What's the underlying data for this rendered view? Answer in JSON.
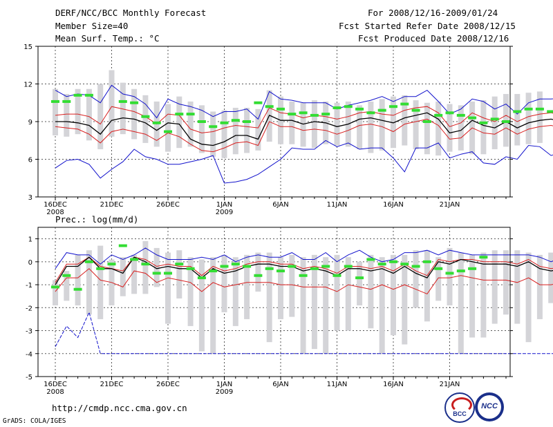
{
  "header": {
    "title": "DERF/NCC/BCC Monthly Forecast",
    "member_size": "Member Size=40",
    "variable_temp": "Mean Surf. Temp.: °C",
    "for_range": "For 2008/12/16-2009/01/24",
    "fcst_started": "Fcst Started Refer Date 2008/12/15",
    "fcst_produced": "Fcst Produced Date 2008/12/16"
  },
  "footer": {
    "url": "http://cmdp.ncc.cma.gov.cn",
    "credit": "GrADS: COLA/IGES",
    "logo_left_text": "BCC",
    "logo_right_text": "NCC"
  },
  "colors": {
    "box": "#d4d4d8",
    "observed": "#33dd33",
    "mean": "#000000",
    "inner": "#d81e1e",
    "outer": "#1111cc",
    "grid": "#555555"
  },
  "chart_data": [
    {
      "type": "line",
      "title": "Mean Surf. Temp.: °C",
      "ylim": [
        3,
        15
      ],
      "yticks": [
        3,
        6,
        9,
        12,
        15
      ],
      "x_start_day": 1,
      "x_tick_days": [
        1,
        6,
        11,
        16,
        21,
        26,
        31,
        36
      ],
      "x_tick_labels": [
        "16DEC",
        "21DEC",
        "26DEC",
        "1JAN",
        "6JAN",
        "11JAN",
        "16JAN",
        "21JAN"
      ],
      "x_year_labels": [
        "2008",
        "",
        "",
        "2009",
        "",
        "",
        "",
        ""
      ],
      "series": [
        {
          "name": "box_high",
          "values": [
            11.6,
            11.2,
            11.6,
            11.6,
            12.0,
            13.1,
            12.1,
            11.6,
            11.1,
            10.6,
            10.4,
            11.0,
            10.6,
            10.3,
            9.8,
            9.9,
            10.1,
            10.1,
            10.0,
            11.5,
            11.0,
            10.6,
            10.5,
            10.7,
            10.6,
            10.5,
            10.6,
            10.3,
            10.6,
            10.8,
            11.0,
            11.1,
            10.7,
            10.5,
            10.6,
            10.4,
            10.3,
            10.6,
            10.7,
            11.0,
            11.2,
            11.2,
            11.3,
            11.4
          ]
        },
        {
          "name": "box_low",
          "values": [
            7.9,
            7.8,
            8.0,
            7.5,
            6.8,
            7.8,
            8.0,
            7.6,
            7.3,
            7.0,
            6.6,
            6.9,
            7.0,
            6.5,
            6.2,
            6.1,
            6.4,
            6.5,
            6.7,
            7.4,
            7.2,
            7.2,
            7.0,
            6.9,
            7.2,
            7.1,
            7.0,
            6.8,
            6.5,
            6.7,
            6.9,
            7.1,
            6.8,
            6.4,
            6.3,
            6.6,
            6.7,
            6.4,
            6.4,
            6.8,
            7.0,
            7.1,
            7.2,
            7.3
          ]
        },
        {
          "name": "outer_high",
          "values": [
            11.5,
            11.0,
            11.2,
            11.1,
            10.5,
            11.9,
            11.2,
            11.0,
            10.4,
            9.3,
            10.8,
            10.4,
            10.2,
            9.9,
            9.4,
            9.8,
            9.8,
            10.0,
            9.2,
            11.4,
            10.8,
            10.7,
            10.5,
            10.5,
            10.5,
            10.0,
            10.3,
            10.5,
            10.7,
            11.0,
            10.6,
            11.0,
            11.0,
            11.5,
            10.6,
            9.6,
            10.0,
            10.8,
            10.6,
            10.0,
            10.4,
            9.6,
            10.5,
            10.8,
            10.8,
            10.9,
            11.0
          ]
        },
        {
          "name": "inner_high",
          "values": [
            9.5,
            9.6,
            9.6,
            9.4,
            8.8,
            10.2,
            10.0,
            9.8,
            9.4,
            8.8,
            9.6,
            9.5,
            8.4,
            8.1,
            8.2,
            8.5,
            8.7,
            8.6,
            8.5,
            10.1,
            9.7,
            9.6,
            9.3,
            9.5,
            9.4,
            9.2,
            9.4,
            9.7,
            9.8,
            9.6,
            9.5,
            9.9,
            10.1,
            10.2,
            9.7,
            8.6,
            8.9,
            9.7,
            9.3,
            9.0,
            9.5,
            9.0,
            9.4,
            9.6,
            9.7,
            9.5,
            9.6
          ]
        },
        {
          "name": "mean",
          "values": [
            9.0,
            9.0,
            8.9,
            8.7,
            8.0,
            9.1,
            9.3,
            9.2,
            8.9,
            8.3,
            8.9,
            8.8,
            7.6,
            7.2,
            7.1,
            7.4,
            7.9,
            7.9,
            7.6,
            9.5,
            9.1,
            9.1,
            8.8,
            9.0,
            8.9,
            8.6,
            8.8,
            9.2,
            9.3,
            9.1,
            8.9,
            9.3,
            9.5,
            9.7,
            9.2,
            8.1,
            8.3,
            9.1,
            8.7,
            8.5,
            9.0,
            8.5,
            8.9,
            9.1,
            9.2,
            9.0,
            9.1
          ]
        },
        {
          "name": "inner_low",
          "values": [
            8.6,
            8.5,
            8.4,
            8.0,
            7.3,
            8.2,
            8.4,
            8.2,
            8.0,
            7.5,
            8.1,
            7.8,
            7.2,
            6.7,
            6.6,
            6.9,
            7.3,
            7.4,
            7.1,
            9.0,
            8.6,
            8.6,
            8.3,
            8.4,
            8.3,
            8.0,
            8.3,
            8.7,
            8.8,
            8.6,
            8.2,
            8.8,
            9.0,
            9.2,
            8.7,
            7.6,
            7.7,
            8.5,
            8.1,
            8.0,
            8.5,
            8.0,
            8.4,
            8.6,
            8.7,
            8.5,
            8.6
          ]
        },
        {
          "name": "outer_low",
          "values": [
            5.3,
            5.9,
            6.0,
            5.6,
            4.5,
            5.2,
            5.8,
            6.8,
            6.2,
            6.0,
            5.6,
            5.6,
            5.8,
            6.0,
            6.3,
            4.1,
            4.2,
            4.4,
            4.8,
            5.4,
            6.0,
            6.9,
            6.8,
            6.8,
            7.5,
            7.0,
            7.3,
            6.8,
            6.9,
            6.9,
            6.1,
            5.0,
            6.9,
            6.9,
            7.3,
            6.1,
            6.4,
            6.6,
            5.7,
            5.6,
            6.2,
            6.0,
            7.1,
            7.0,
            6.3,
            6.6,
            6.8
          ]
        },
        {
          "name": "observed",
          "values": [
            10.6,
            10.6,
            11.1,
            11.1,
            null,
            null,
            10.6,
            10.5,
            9.4,
            8.9,
            8.2,
            9.6,
            9.6,
            9.0,
            8.6,
            8.9,
            9.1,
            9.0,
            10.5,
            10.2,
            10.0,
            9.6,
            9.7,
            9.5,
            9.6,
            10.1,
            10.2,
            10.0,
            9.7,
            9.9,
            10.2,
            10.4,
            9.9,
            9.0,
            9.5,
            9.7,
            9.5,
            9.3,
            8.9,
            9.2,
            9.0,
            9.8,
            10.0,
            10.0,
            9.8,
            9.9,
            null
          ]
        }
      ]
    },
    {
      "type": "line",
      "title": "Prec.: log(mm/d)",
      "ylim": [
        -5,
        1.5
      ],
      "yticks": [
        -5,
        -4,
        -3,
        -2,
        -1,
        0,
        1
      ],
      "x_start_day": 1,
      "x_tick_days": [
        1,
        6,
        11,
        16,
        21,
        26,
        31,
        36
      ],
      "x_tick_labels": [
        "16DEC",
        "21DEC",
        "26DEC",
        "1JAN",
        "6JAN",
        "11JAN",
        "16JAN",
        "21JAN"
      ],
      "x_year_labels": [
        "2008",
        "",
        "",
        "2009",
        "",
        "",
        "",
        ""
      ],
      "series": [
        {
          "name": "box_high",
          "values": [
            -0.8,
            -0.4,
            0.3,
            0.5,
            0.7,
            0.1,
            0.2,
            0.3,
            0.9,
            0.6,
            0.4,
            0.5,
            0.2,
            0.1,
            0.2,
            0.3,
            0.2,
            0.3,
            0.4,
            0.4,
            0.2,
            0.3,
            0.2,
            0.3,
            0.2,
            0.3,
            0.2,
            0.0,
            0.3,
            0.2,
            0.3,
            0.3,
            0.5,
            0.5,
            0.2,
            0.6,
            0.4,
            0.3,
            0.4,
            0.5,
            0.5,
            0.5,
            0.4,
            0.3,
            0.4,
            0.5
          ]
        },
        {
          "name": "box_low",
          "values": [
            -1.9,
            -1.7,
            -1.9,
            -2.3,
            -2.5,
            -1.9,
            -1.5,
            -1.4,
            -1.4,
            -1.1,
            -2.7,
            -1.6,
            -2.8,
            -3.9,
            -4.0,
            -2.2,
            -2.8,
            -2.5,
            -1.3,
            -3.5,
            -2.5,
            -2.4,
            -4.0,
            -3.8,
            -4.0,
            -3.0,
            -3.0,
            -1.9,
            -2.9,
            -4.0,
            -3.2,
            -3.6,
            -2.0,
            -2.6,
            -1.7,
            -1.9,
            -4.0,
            -3.3,
            -3.3,
            -2.7,
            -2.3,
            -2.7,
            -3.5,
            -2.5,
            -1.8,
            -1.7
          ]
        },
        {
          "name": "outer_high",
          "values": [
            -0.3,
            0.4,
            0.3,
            0.3,
            -0.1,
            0.3,
            0.1,
            0.3,
            0.6,
            0.3,
            0.1,
            0.1,
            0.1,
            0.2,
            0.1,
            0.3,
            0.0,
            0.2,
            0.3,
            0.2,
            0.2,
            0.4,
            0.1,
            0.1,
            0.4,
            0.0,
            0.3,
            0.5,
            0.2,
            0.0,
            0.1,
            0.4,
            0.4,
            0.5,
            0.3,
            0.5,
            0.4,
            0.3,
            0.3,
            0.3,
            0.3,
            0.3,
            0.3,
            0.2,
            0.0,
            0.2,
            0.6
          ]
        },
        {
          "name": "mean",
          "values": [
            -1.0,
            -0.2,
            -0.2,
            0.2,
            -0.3,
            -0.3,
            -0.5,
            0.2,
            0.0,
            -0.3,
            -0.2,
            -0.3,
            -0.3,
            -0.7,
            -0.3,
            -0.5,
            -0.4,
            -0.2,
            -0.1,
            -0.1,
            -0.2,
            -0.2,
            -0.4,
            -0.3,
            -0.4,
            -0.6,
            -0.3,
            -0.3,
            -0.4,
            -0.3,
            -0.5,
            -0.2,
            -0.5,
            -0.7,
            0.0,
            -0.1,
            0.1,
            0.0,
            -0.1,
            -0.1,
            -0.1,
            -0.2,
            0.0,
            -0.3,
            -0.4,
            -0.3,
            0.1
          ]
        },
        {
          "name": "inner_high",
          "values": [
            -0.9,
            -0.1,
            -0.1,
            0.2,
            -0.2,
            -0.3,
            -0.4,
            0.2,
            0.1,
            -0.2,
            -0.1,
            -0.2,
            -0.2,
            -0.6,
            -0.2,
            -0.4,
            -0.3,
            -0.1,
            0.0,
            0.0,
            -0.1,
            -0.1,
            -0.3,
            -0.2,
            -0.3,
            -0.5,
            -0.2,
            -0.2,
            -0.3,
            -0.2,
            -0.4,
            -0.1,
            -0.4,
            -0.6,
            0.1,
            0.0,
            0.1,
            0.1,
            0.0,
            0.0,
            0.0,
            -0.1,
            0.1,
            -0.2,
            -0.3,
            -0.2,
            0.2
          ]
        },
        {
          "name": "inner_low",
          "values": [
            -1.3,
            -0.7,
            -0.7,
            -0.3,
            -0.8,
            -0.9,
            -1.1,
            -0.4,
            -0.5,
            -0.9,
            -0.7,
            -0.8,
            -0.9,
            -1.3,
            -0.9,
            -1.1,
            -1.0,
            -0.9,
            -0.9,
            -0.9,
            -1.0,
            -1.0,
            -1.1,
            -1.1,
            -1.1,
            -1.3,
            -1.0,
            -1.1,
            -1.2,
            -1.0,
            -1.2,
            -1.0,
            -1.2,
            -1.4,
            -0.7,
            -0.7,
            -0.6,
            -0.7,
            -0.8,
            -0.8,
            -0.8,
            -0.9,
            -0.7,
            -1.0,
            -1.0,
            -0.9,
            -0.5
          ]
        },
        {
          "name": "outer_low",
          "values": [
            -3.7,
            -2.8,
            -3.3,
            -2.2,
            -4.0,
            -4.0,
            -4.0,
            -4.0,
            -4.0,
            -4.0,
            -4.0,
            -4.0,
            -4.0,
            -4.0,
            -4.0,
            -4.0,
            -4.0,
            -4.0,
            -4.0,
            -4.0,
            -4.0,
            -4.0,
            -4.0,
            -4.0,
            -4.0,
            -4.0,
            -4.0,
            -4.0,
            -4.0,
            -4.0,
            -4.0,
            -4.0,
            -4.0,
            -4.0,
            -4.0,
            -4.0,
            -4.0,
            -4.0,
            -4.0,
            -4.0,
            -4.0,
            -4.0,
            -4.0,
            -4.0,
            -4.0,
            -4.0,
            -4.0
          ]
        },
        {
          "name": "observed",
          "values": [
            -1.1,
            -0.6,
            -1.2,
            0.0,
            -0.3,
            -0.1,
            0.7,
            0.1,
            -0.1,
            -0.5,
            -0.5,
            -0.1,
            -0.3,
            -0.7,
            -0.4,
            -0.2,
            -0.1,
            -0.2,
            -0.6,
            -0.3,
            -0.4,
            -0.2,
            -0.6,
            -0.3,
            -0.2,
            -0.6,
            -0.2,
            -0.7,
            0.1,
            -0.1,
            0.0,
            -0.1,
            -0.2,
            0.0,
            -0.3,
            -0.5,
            -0.4,
            -0.3,
            0.2,
            null,
            null,
            null,
            null,
            null,
            null,
            null,
            null
          ]
        }
      ]
    }
  ]
}
